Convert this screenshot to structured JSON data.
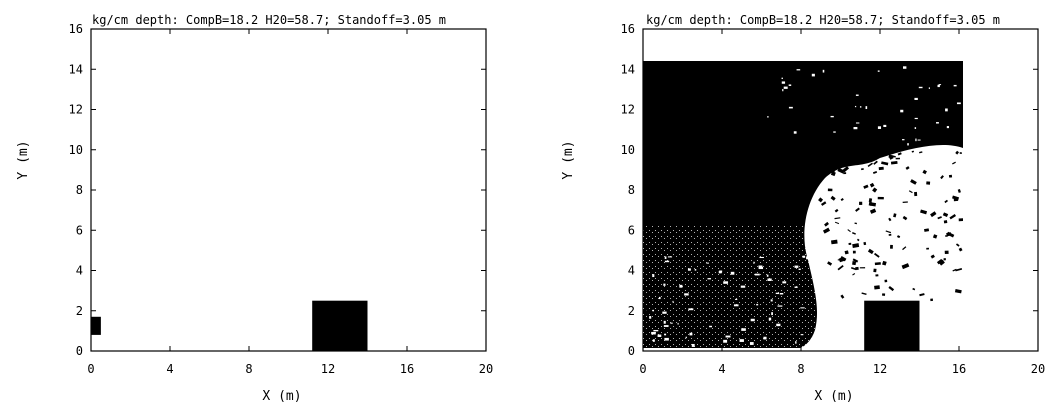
{
  "chart_data": [
    {
      "type": "scatter",
      "title": "kg/cm depth: CompB=18.2  H20=58.7; Standoff=3.05 m",
      "xlabel": "X (m)",
      "ylabel": "Y (m)",
      "xlim": [
        0,
        20
      ],
      "ylim": [
        0,
        16
      ],
      "x_ticks": [
        "0",
        "4",
        "8",
        "12",
        "16",
        "20"
      ],
      "y_ticks": [
        "0",
        "2",
        "4",
        "6",
        "8",
        "10",
        "12",
        "14",
        "16"
      ],
      "grid": false,
      "regions": [
        {
          "name": "charge",
          "x": [
            0,
            0.5
          ],
          "y": [
            0.8,
            1.7
          ]
        },
        {
          "name": "target block",
          "x": [
            11.2,
            14.0
          ],
          "y": [
            0,
            2.5
          ]
        }
      ]
    },
    {
      "type": "scatter",
      "title": "kg/cm depth: CompB=18.2  H20=58.7; Standoff=3.05 m",
      "xlabel": "X (m)",
      "ylabel": "Y (m)",
      "xlim": [
        0,
        20
      ],
      "ylim": [
        0,
        16
      ],
      "x_ticks": [
        "0",
        "4",
        "8",
        "12",
        "16",
        "20"
      ],
      "y_ticks": [
        "0",
        "2",
        "4",
        "6",
        "8",
        "10",
        "12",
        "14",
        "16"
      ],
      "grid": false,
      "field_region": {
        "x": [
          0,
          16.3
        ],
        "y": [
          0,
          14.4
        ]
      },
      "regions": [
        {
          "name": "target block",
          "x": [
            11.2,
            14.0
          ],
          "y": [
            0,
            2.5
          ]
        }
      ]
    }
  ]
}
